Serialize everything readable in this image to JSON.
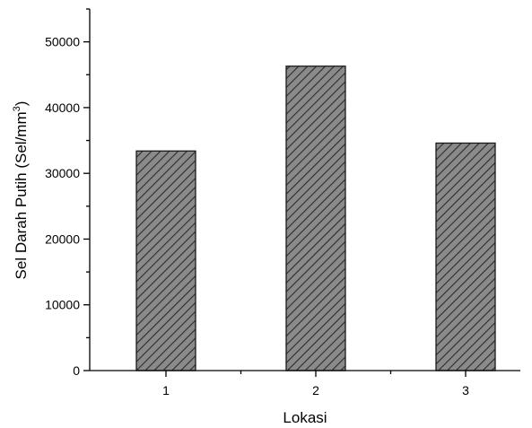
{
  "chart_data": {
    "type": "bar",
    "categories": [
      "1",
      "2",
      "3"
    ],
    "values": [
      33400,
      46300,
      34600
    ],
    "xlabel": "Lokasi",
    "ylabel_main": "Sel Darah Putih (Sel/mm",
    "ylabel_sup": "3",
    "ylabel_end": ")",
    "ylim": [
      0,
      55000
    ],
    "yticks": [
      0,
      10000,
      20000,
      30000,
      40000,
      50000
    ],
    "ytick_labels": [
      "0",
      "10000",
      "20000",
      "30000",
      "40000",
      "50000"
    ],
    "grid": false,
    "legend": "none",
    "bar_fill": "#8a8a8a",
    "hatch_color": "#2b2b2b",
    "bar_edge": "#1a1a1a"
  }
}
